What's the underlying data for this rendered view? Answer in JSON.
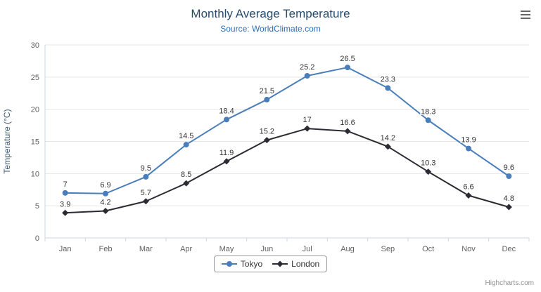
{
  "header": {
    "title": "Monthly Average Temperature",
    "subtitle": "Source: WorldClimate.com"
  },
  "credits": "Highcharts.com",
  "context_menu_icon": "hamburger",
  "colors": {
    "title": "#274b6d",
    "subtitle": "#2f6eb3",
    "axis_label": "#606060",
    "axis_title": "#3e576f",
    "grid_line": "#e6e6e6",
    "axis_line": "#ccd6eb",
    "data_label": "#333333",
    "legend_text": "#333333",
    "credits_text": "#909090"
  },
  "chart_data": {
    "type": "line",
    "title": "Monthly Average Temperature",
    "subtitle": "Source: WorldClimate.com",
    "categories": [
      "Jan",
      "Feb",
      "Mar",
      "Apr",
      "May",
      "Jun",
      "Jul",
      "Aug",
      "Sep",
      "Oct",
      "Nov",
      "Dec"
    ],
    "series": [
      {
        "name": "Tokyo",
        "color": "#4a7ebb",
        "marker": "circle",
        "values": [
          7,
          6.9,
          9.5,
          14.5,
          18.4,
          21.5,
          25.2,
          26.5,
          23.3,
          18.3,
          13.9,
          9.6
        ]
      },
      {
        "name": "London",
        "color": "#2b2b33",
        "marker": "diamond",
        "values": [
          3.9,
          4.2,
          5.7,
          8.5,
          11.9,
          15.2,
          17,
          16.6,
          14.2,
          10.3,
          6.6,
          4.8
        ]
      }
    ],
    "xlabel": "",
    "ylabel": "Temperature (°C)",
    "ylim": [
      0,
      30
    ],
    "ytick_interval": 5,
    "grid": true,
    "legend_position": "bottom",
    "data_labels": true
  }
}
